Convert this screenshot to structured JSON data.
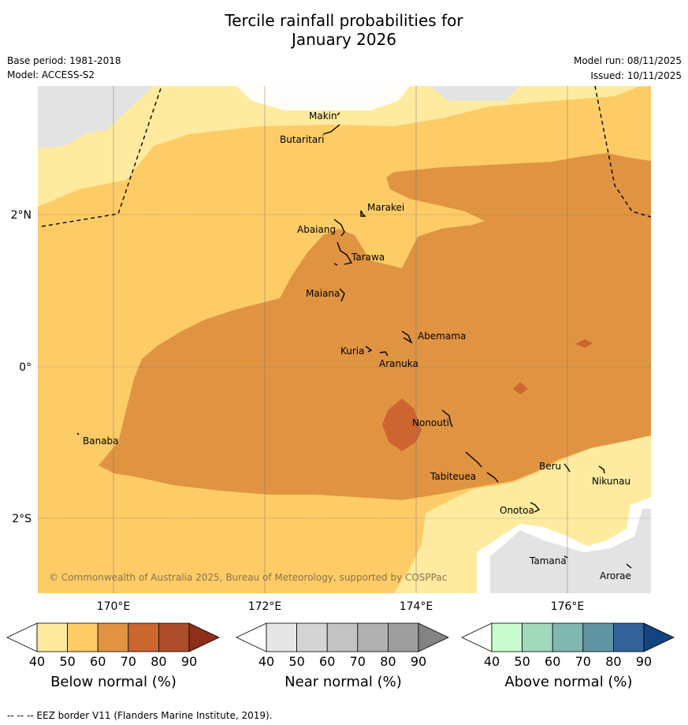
{
  "header": {
    "title_line1": "Tercile rainfall probabilities for",
    "title_line2": "January 2026",
    "base_period": "Base period: 1981-2018",
    "model": "Model: ACCESS-S2",
    "model_run": "Model run: 08/11/2025",
    "issued": "Issued: 10/11/2025"
  },
  "map": {
    "lat_labels": [
      "2°N",
      "0°",
      "2°S"
    ],
    "lon_labels": [
      "170°E",
      "172°E",
      "174°E",
      "176°E"
    ],
    "islands": [
      "Makin",
      "Butaritari",
      "Marakei",
      "Abaiang",
      "Tarawa",
      "Maiana",
      "Abemama",
      "Kuria",
      "Aranuka",
      "Nonouti",
      "Banaba",
      "Tabiteuea",
      "Beru",
      "Nikunau",
      "Onotoa",
      "Tamana",
      "Arorae"
    ],
    "copyright": "© Commonwealth of Australia 2025, Bureau of Meteorology, supported by COSPPac",
    "colors": {
      "land_mask": "#e3e3e3",
      "below_40_50": "#ffeb9f",
      "below_50_60": "#fecc66",
      "below_60_70": "#e09441",
      "below_70_80": "#cd6531"
    }
  },
  "colorbars": [
    {
      "label": "Below normal (%)",
      "ticks": [
        "40",
        "50",
        "60",
        "70",
        "80",
        "90"
      ],
      "colors": [
        "#ffffff",
        "#ffeb9f",
        "#fecc66",
        "#e09441",
        "#cd6531",
        "#ad4c29",
        "#8f2e1a"
      ]
    },
    {
      "label": "Near normal (%)",
      "ticks": [
        "40",
        "50",
        "60",
        "70",
        "80",
        "90"
      ],
      "colors": [
        "#ffffff",
        "#e6e6e6",
        "#d4d4d4",
        "#c3c3c3",
        "#b1b1b1",
        "#9e9e9e",
        "#838383"
      ]
    },
    {
      "label": "Above normal (%)",
      "ticks": [
        "40",
        "50",
        "60",
        "70",
        "80",
        "90"
      ],
      "colors": [
        "#ffffff",
        "#c9fdd0",
        "#a2d9bc",
        "#80b8b0",
        "#5f95a0",
        "#33639a",
        "#12447e"
      ]
    }
  ],
  "footnote": "--  --  -- EEZ border V11 (Flanders Marine Institute, 2019)."
}
